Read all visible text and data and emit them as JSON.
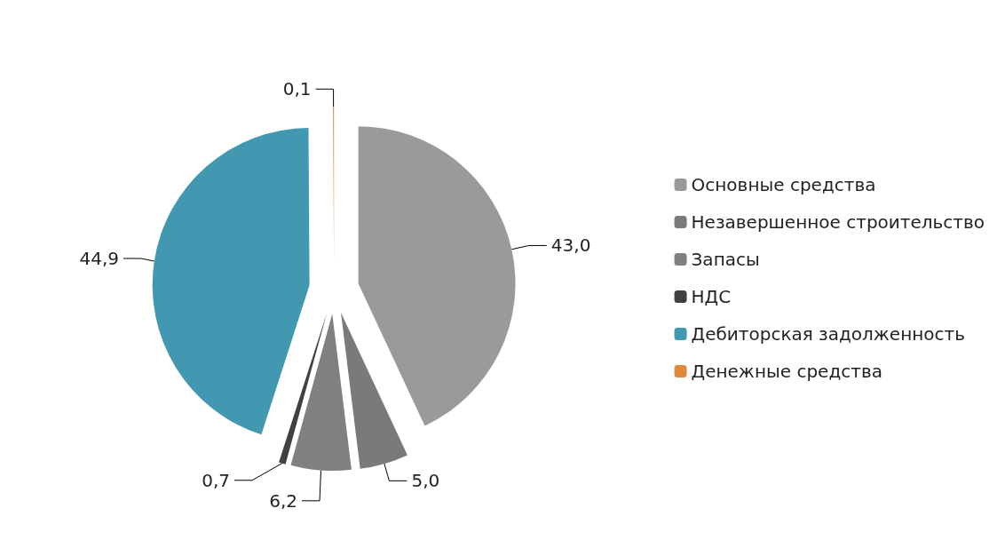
{
  "chart_data": {
    "type": "pie",
    "categories": [
      "Основные средства",
      "Незавершенное строительство",
      "Запасы",
      "НДС",
      "Дебиторская задолженность",
      "Денежные средства"
    ],
    "values": [
      43.0,
      5.0,
      6.2,
      0.7,
      44.9,
      0.1
    ],
    "colors": [
      "#9a9a9a",
      "#7a7a7a",
      "#808080",
      "#404040",
      "#4198b0",
      "#e0883c"
    ],
    "value_labels": [
      "43,0",
      "5,0",
      "6,2",
      "0,7",
      "44,9",
      "0,1"
    ],
    "legend": "right"
  }
}
